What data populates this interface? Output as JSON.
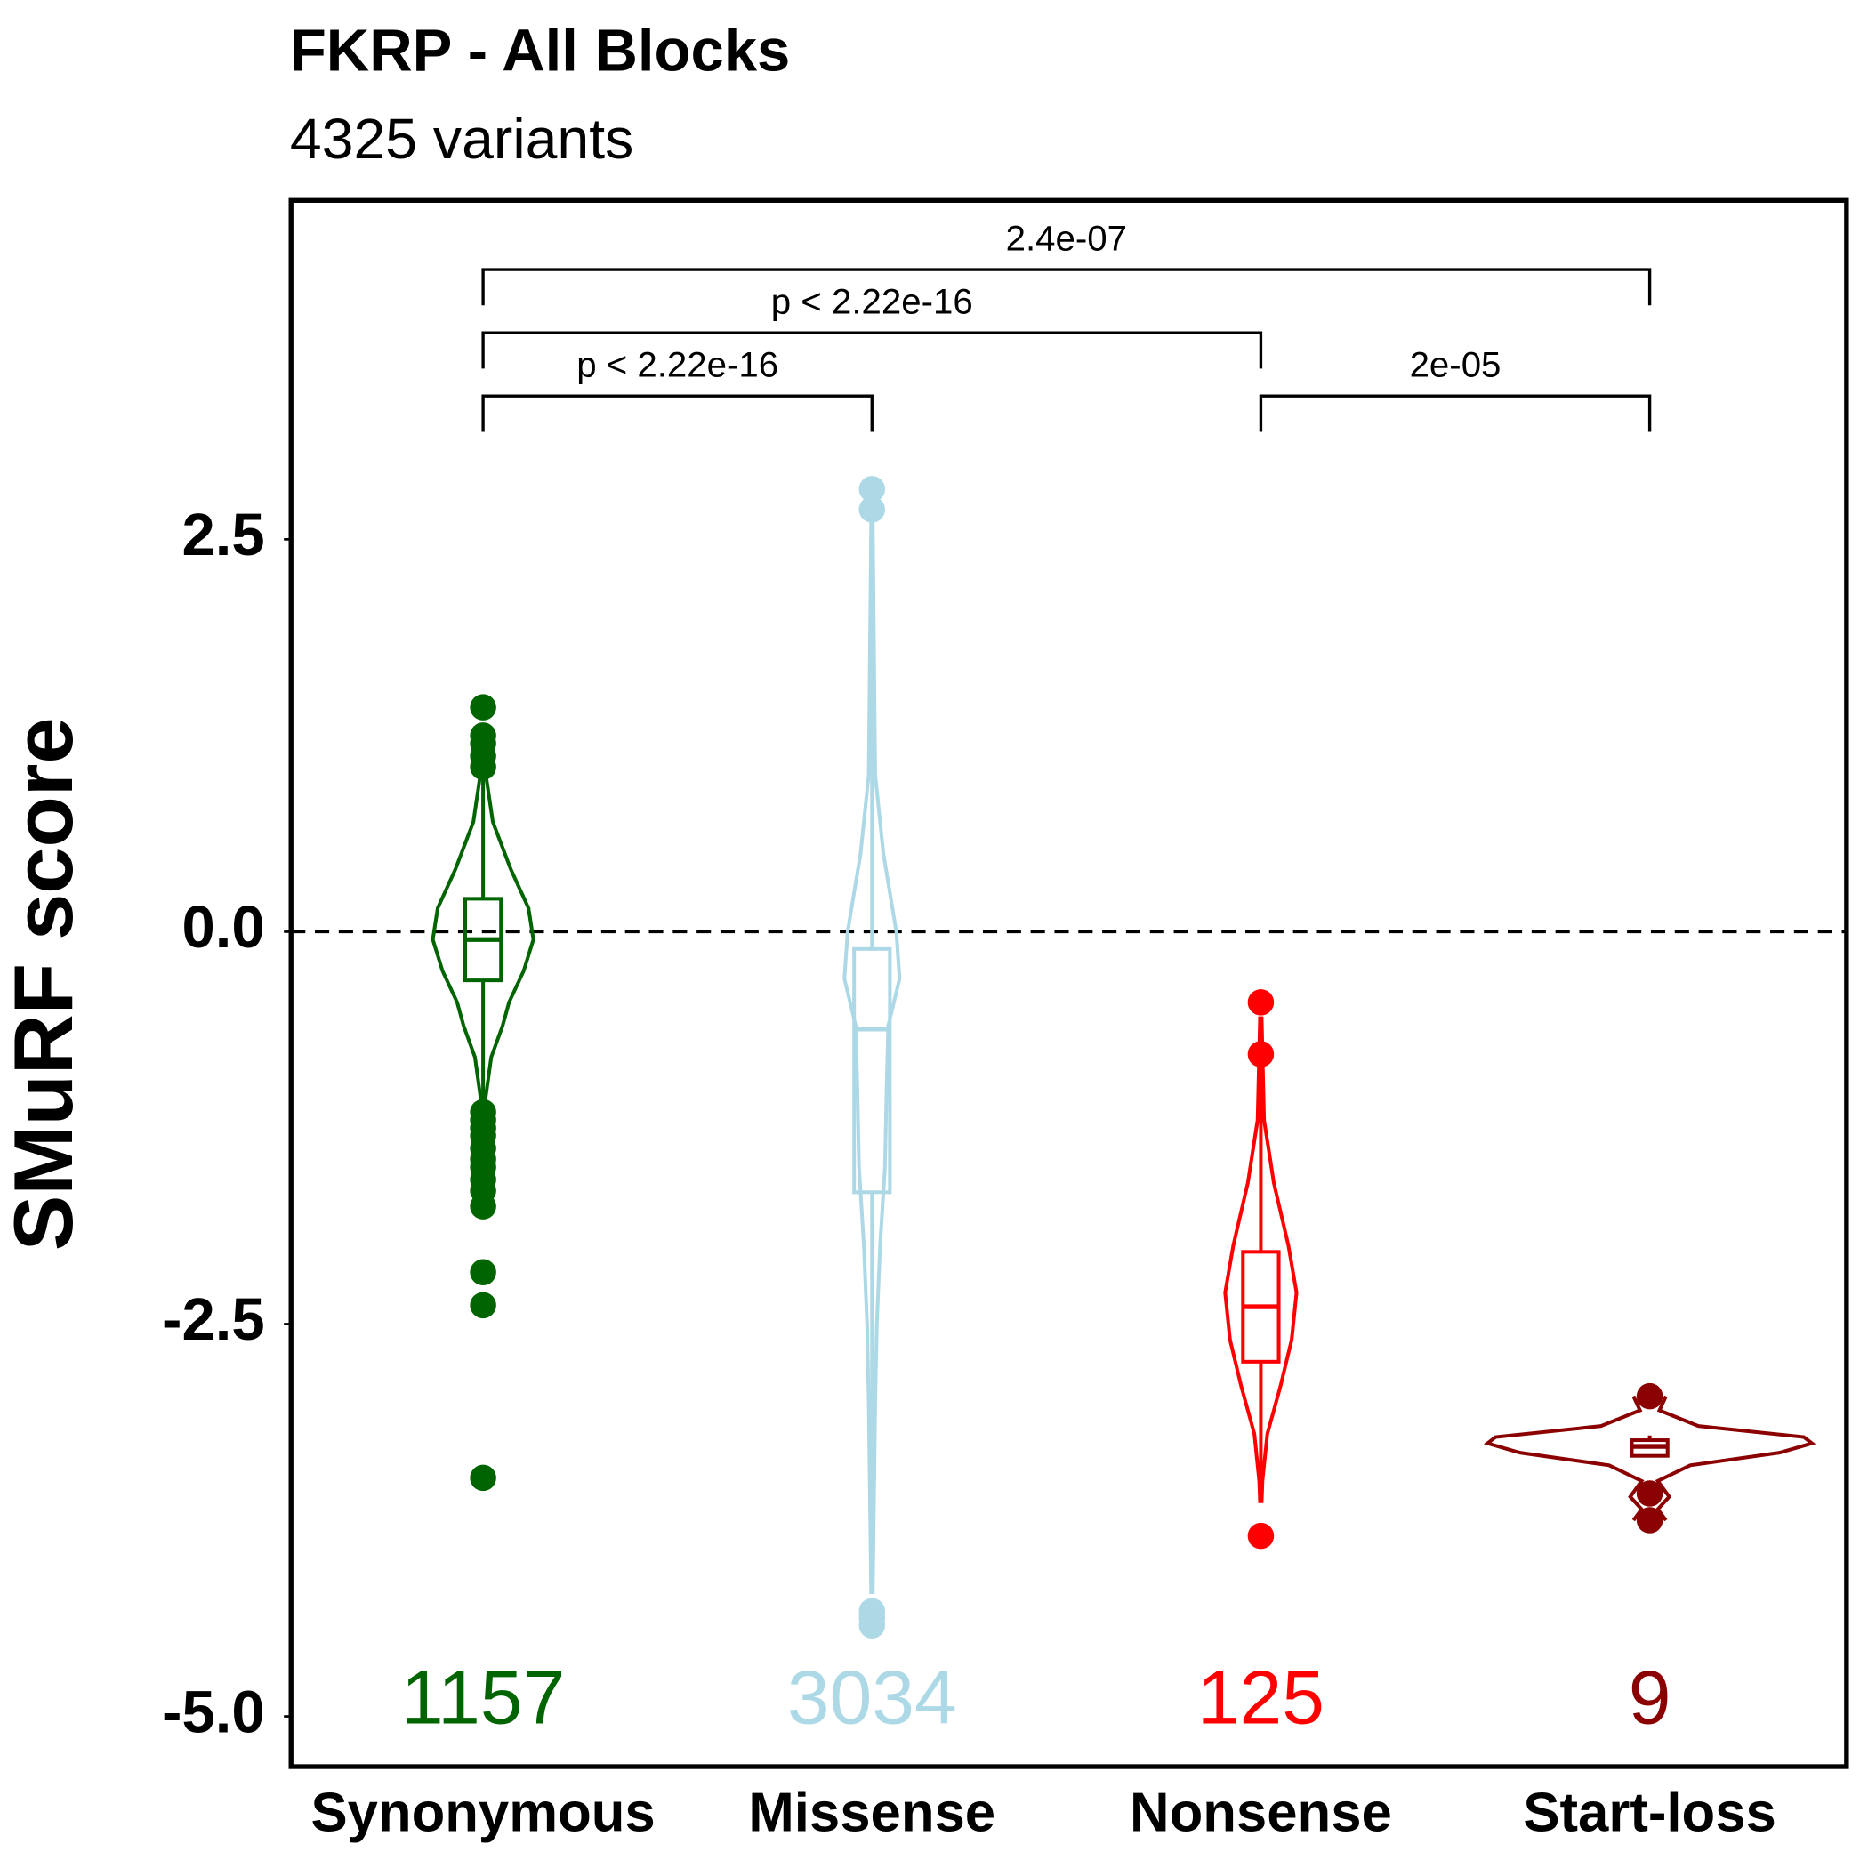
{
  "chart_data": {
    "type": "violin",
    "title": "FKRP - All Blocks",
    "subtitle": "4325 variants",
    "y_label": "SMuRF score",
    "ylim": [
      -5.32,
      4.66
    ],
    "yticks": [
      {
        "value": -5,
        "label": "-5.0"
      },
      -2.5,
      {
        "value": 0,
        "label": "0.0"
      },
      2.5
    ],
    "hline": 0,
    "groups": [
      {
        "name": "Synonymous",
        "color": "#006400",
        "n": 1157,
        "violin": {
          "y": [
            1.05,
            0.7,
            0.4,
            0.15,
            -0.05,
            -0.25,
            -0.45,
            -0.6,
            -0.8,
            -1.1
          ],
          "width": [
            0.01,
            0.06,
            0.17,
            0.28,
            0.31,
            0.25,
            0.16,
            0.12,
            0.05,
            0.01
          ]
        },
        "box": {
          "lower_whisker": -1.1,
          "q1": -0.31,
          "median": -0.05,
          "q3": 0.21,
          "upper_whisker": 1.0
        },
        "outliers": [
          1.43,
          1.25,
          1.2,
          1.12,
          1.05,
          -1.15,
          -1.2,
          -1.25,
          -1.3,
          -1.38,
          -1.45,
          -1.5,
          -1.58,
          -1.65,
          -1.75,
          -2.17,
          -2.38,
          -3.48
        ]
      },
      {
        "name": "Missense",
        "color": "#add8e6",
        "n": 3034,
        "violin": {
          "y": [
            2.61,
            1.0,
            0.5,
            0.0,
            -0.3,
            -0.6,
            -1.0,
            -1.5,
            -2.0,
            -2.5,
            -3.0,
            -4.22
          ],
          "width": [
            0.005,
            0.02,
            0.07,
            0.15,
            0.17,
            0.1,
            0.09,
            0.08,
            0.05,
            0.03,
            0.02,
            0.005
          ]
        },
        "box": {
          "lower_whisker": -4.22,
          "q1": -1.66,
          "median": -0.62,
          "q3": -0.11,
          "upper_whisker": 2.61
        },
        "outliers": [
          2.82,
          2.69,
          -4.33,
          -4.37,
          -4.42
        ]
      },
      {
        "name": "Nonsense",
        "color": "#ff0000",
        "n": 125,
        "violin": {
          "y": [
            -0.54,
            -1.2,
            -1.6,
            -2.0,
            -2.3,
            -2.6,
            -2.9,
            -3.2,
            -3.5,
            -3.64
          ],
          "width": [
            0.005,
            0.02,
            0.08,
            0.17,
            0.22,
            0.19,
            0.12,
            0.04,
            0.01,
            0.005
          ]
        },
        "box": {
          "lower_whisker": -3.64,
          "q1": -2.74,
          "median": -2.39,
          "q3": -2.04,
          "upper_whisker": -0.54
        },
        "outliers": [
          -0.45,
          -0.78,
          -3.85
        ]
      },
      {
        "name": "Start-loss",
        "color": "#8b0000",
        "n": 9,
        "violin": {
          "y": [
            -2.96,
            -3.05,
            -3.15,
            -3.22,
            -3.26,
            -3.32,
            -3.4,
            -3.5,
            -3.6,
            -3.68,
            -3.75
          ],
          "width": [
            0.1,
            0.06,
            0.3,
            0.95,
            1.0,
            0.8,
            0.25,
            0.05,
            0.12,
            0.05,
            0.1
          ]
        },
        "box": {
          "lower_whisker": -3.34,
          "q1": -3.34,
          "median": -3.28,
          "q3": -3.24,
          "upper_whisker": -3.21
        },
        "outliers": [
          -2.96,
          -3.58,
          -3.75
        ]
      }
    ],
    "comparisons": [
      {
        "groups": [
          "Synonymous",
          "Missense"
        ],
        "label": "p < 2.22e-16"
      },
      {
        "groups": [
          "Nonsense",
          "Start-loss"
        ],
        "label": "2e-05"
      },
      {
        "groups": [
          "Synonymous",
          "Nonsense"
        ],
        "label": "p < 2.22e-16"
      },
      {
        "groups": [
          "Synonymous",
          "Start-loss"
        ],
        "label": "2.4e-07"
      }
    ]
  }
}
